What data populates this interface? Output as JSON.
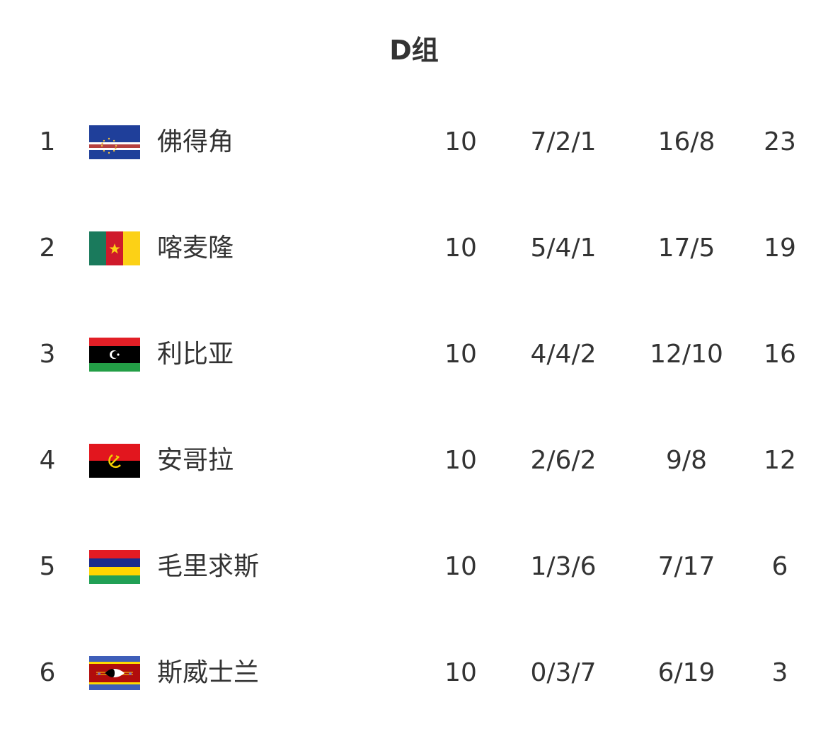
{
  "title": "D组",
  "rows": [
    {
      "rank": "1",
      "flag": "cape-verde-flag",
      "team": "佛得角",
      "played": "10",
      "wdl": "7/2/1",
      "goals": "16/8",
      "points": "23"
    },
    {
      "rank": "2",
      "flag": "cameroon-flag",
      "team": "喀麦隆",
      "played": "10",
      "wdl": "5/4/1",
      "goals": "17/5",
      "points": "19"
    },
    {
      "rank": "3",
      "flag": "libya-flag",
      "team": "利比亚",
      "played": "10",
      "wdl": "4/4/2",
      "goals": "12/10",
      "points": "16"
    },
    {
      "rank": "4",
      "flag": "angola-flag",
      "team": "安哥拉",
      "played": "10",
      "wdl": "2/6/2",
      "goals": "9/8",
      "points": "12"
    },
    {
      "rank": "5",
      "flag": "mauritius-flag",
      "team": "毛里求斯",
      "played": "10",
      "wdl": "1/3/6",
      "goals": "7/17",
      "points": "6"
    },
    {
      "rank": "6",
      "flag": "eswatini-flag",
      "team": "斯威士兰",
      "played": "10",
      "wdl": "0/3/7",
      "goals": "6/19",
      "points": "3"
    }
  ]
}
